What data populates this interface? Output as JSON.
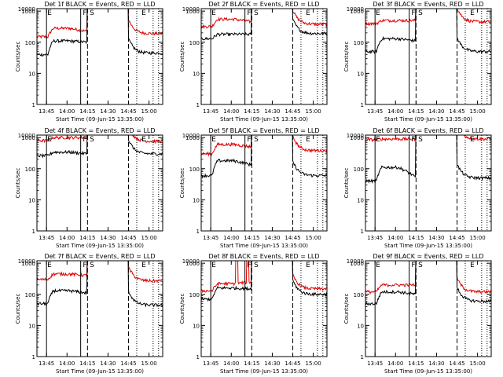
{
  "chart_data": {
    "type": "line",
    "xlabel": "Start Time (09-Jun-15 13:35:00)",
    "ylabel": "Counts/sec",
    "yscale": "log",
    "ylim": [
      1,
      1200
    ],
    "xlim": [
      "13:38",
      "15:10"
    ],
    "xticks": [
      "13:45",
      "14:00",
      "14:15",
      "14:30",
      "14:45",
      "15:00"
    ],
    "yticks": [
      "1",
      "10",
      "100",
      "1000",
      "10000"
    ],
    "legend": "in title",
    "series_colors": {
      "events": "#000000",
      "lld": "#e00000"
    },
    "markers": {
      "solid": [
        "13:45",
        "14:10"
      ],
      "dashed": [
        "14:15",
        "14:45"
      ],
      "dotted": [
        "14:51",
        "15:03",
        "15:07"
      ],
      "letters": [
        {
          "t": "13:45",
          "label": "E"
        },
        {
          "t": "14:11",
          "label": "F"
        },
        {
          "t": "14:16",
          "label": "S"
        },
        {
          "t": "14:54",
          "label": "E"
        }
      ]
    },
    "panels": [
      {
        "title": "Det 1f BLACK = Events, RED = LLD",
        "ev": [
          40,
          110,
          100
        ],
        "lld": [
          150,
          280,
          220
        ],
        "ev_after": 45,
        "lld_after": 190,
        "spikes": false
      },
      {
        "title": "Det 2f BLACK = Events, RED = LLD",
        "ev": [
          130,
          180,
          180
        ],
        "lld": [
          320,
          550,
          450
        ],
        "ev_after": 190,
        "lld_after": 380,
        "spikes": false
      },
      {
        "title": "Det 3f BLACK = Events, RED = LLD",
        "ev": [
          50,
          130,
          110
        ],
        "lld": [
          400,
          500,
          500
        ],
        "ev_after": 50,
        "lld_after": 450,
        "spikes": false
      },
      {
        "title": "Det 4f BLACK = Events, RED = LLD",
        "ev": [
          260,
          340,
          300
        ],
        "lld": [
          800,
          1000,
          1000
        ],
        "ev_after": 300,
        "lld_after": 760,
        "spikes": false
      },
      {
        "title": "Det 5f BLACK = Events, RED = LLD",
        "ev": [
          60,
          180,
          130
        ],
        "lld": [
          300,
          600,
          500
        ],
        "ev_after": 60,
        "lld_after": 380,
        "spikes": false
      },
      {
        "title": "Det 6f BLACK = Events, RED = LLD",
        "ev": [
          40,
          110,
          50
        ],
        "lld": [
          850,
          900,
          900
        ],
        "ev_after": 50,
        "lld_after": 900,
        "spikes": false
      },
      {
        "title": "Det 7f BLACK = Events, RED = LLD",
        "ev": [
          50,
          130,
          110
        ],
        "lld": [
          300,
          450,
          400
        ],
        "ev_after": 45,
        "lld_after": 270,
        "spikes": false
      },
      {
        "title": "Det 8f BLACK = Events, RED = LLD",
        "ev": [
          70,
          160,
          150
        ],
        "lld": [
          130,
          220,
          250
        ],
        "ev_after": 100,
        "lld_after": 150,
        "spikes": true
      },
      {
        "title": "Det 9f BLACK = Events, RED = LLD",
        "ev": [
          50,
          120,
          100
        ],
        "lld": [
          120,
          200,
          200
        ],
        "ev_after": 60,
        "lld_after": 120,
        "spikes": false
      }
    ]
  }
}
